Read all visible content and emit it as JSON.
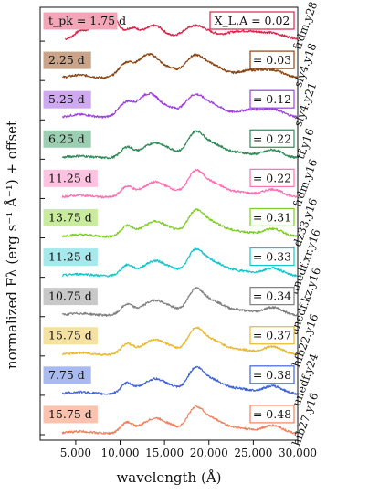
{
  "chart_data": {
    "type": "line",
    "xlabel": "wavelength (Å)",
    "ylabel": "normalized Fλ (erg s⁻¹ Å⁻¹) + offset",
    "xlim": [
      1000,
      30000
    ],
    "xticks": [
      5000,
      10000,
      15000,
      20000,
      25000,
      30000
    ],
    "xtick_labels": [
      "5,000",
      "10,000",
      "15,000",
      "20,000",
      "25,000",
      "30,000"
    ],
    "header_time": "t_pk = 1.75 d",
    "header_xla": "X_L,A = 0.02",
    "series": [
      {
        "name": "frdm.y28",
        "time": "1.75 d",
        "xla": "0.02",
        "color": "#d7264a",
        "fill": "#f2a6b8",
        "profile": "early"
      },
      {
        "name": "sly4.y18",
        "time": "2.25 d",
        "xla": "= 0.03",
        "color": "#8b4513",
        "fill": "#c9a488",
        "profile": "mid"
      },
      {
        "name": "sly4.y21",
        "time": "5.25 d",
        "xla": "= 0.12",
        "color": "#9c3fe0",
        "fill": "#cfa8f2",
        "profile": "mid"
      },
      {
        "name": "tf.y16",
        "time": "6.25 d",
        "xla": "= 0.22",
        "color": "#2e8b57",
        "fill": "#9ccfb2",
        "profile": "late"
      },
      {
        "name": "frdm.y16",
        "time": "11.25 d",
        "xla": "= 0.22",
        "color": "#ff6fb5",
        "fill": "#ffc2e0",
        "profile": "late"
      },
      {
        "name": "dz33.y16",
        "time": "13.75 d",
        "xla": "= 0.31",
        "color": "#7ccf1f",
        "fill": "#c8ec9c",
        "profile": "late"
      },
      {
        "name": "unedf.xr.y16",
        "time": "11.25 d",
        "xla": "= 0.33",
        "color": "#12c6cc",
        "fill": "#a6e9ec",
        "profile": "late"
      },
      {
        "name": "unedf.kz.y16",
        "time": "10.75 d",
        "xla": "= 0.34",
        "color": "#7f7f7f",
        "fill": "#c8c8c8",
        "profile": "late"
      },
      {
        "name": "hfb22.y16",
        "time": "15.75 d",
        "xla": "= 0.37",
        "color": "#e8b72a",
        "fill": "#f6e2a0",
        "profile": "late"
      },
      {
        "name": "unedf.y24",
        "time": "7.75 d",
        "xla": "= 0.38",
        "color": "#3f63d8",
        "fill": "#a8baf0",
        "profile": "late"
      },
      {
        "name": "hfb27.y16",
        "time": "15.75 d",
        "xla": "= 0.48",
        "color": "#f57f5c",
        "fill": "#fbc2ae",
        "profile": "late"
      }
    ]
  }
}
